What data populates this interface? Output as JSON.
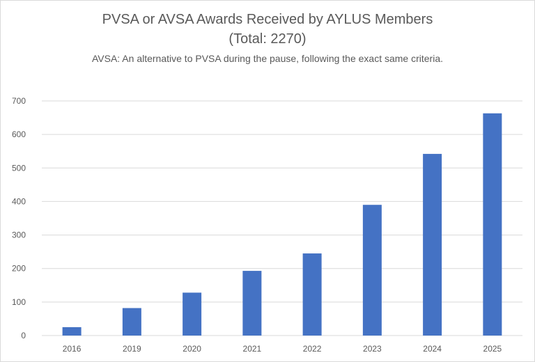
{
  "chart_data": {
    "type": "bar",
    "title": [
      "PVSA or AVSA Awards Received by AYLUS Members",
      "(Total: 2270)"
    ],
    "subtitle": "AVSA: An alternative to PVSA during the pause, following the exact same criteria.",
    "categories": [
      "2016",
      "2019",
      "2020",
      "2021",
      "2022",
      "2023",
      "2024",
      "2025"
    ],
    "values": [
      25,
      82,
      128,
      193,
      245,
      390,
      542,
      663
    ],
    "ylim": [
      0,
      700
    ],
    "yticks": [
      0,
      100,
      200,
      300,
      400,
      500,
      600,
      700
    ],
    "grid": true,
    "xlabel": "",
    "ylabel": "",
    "bar_color": "#4472C4",
    "grid_color": "#D9D9D9",
    "text_color": "#595959"
  }
}
